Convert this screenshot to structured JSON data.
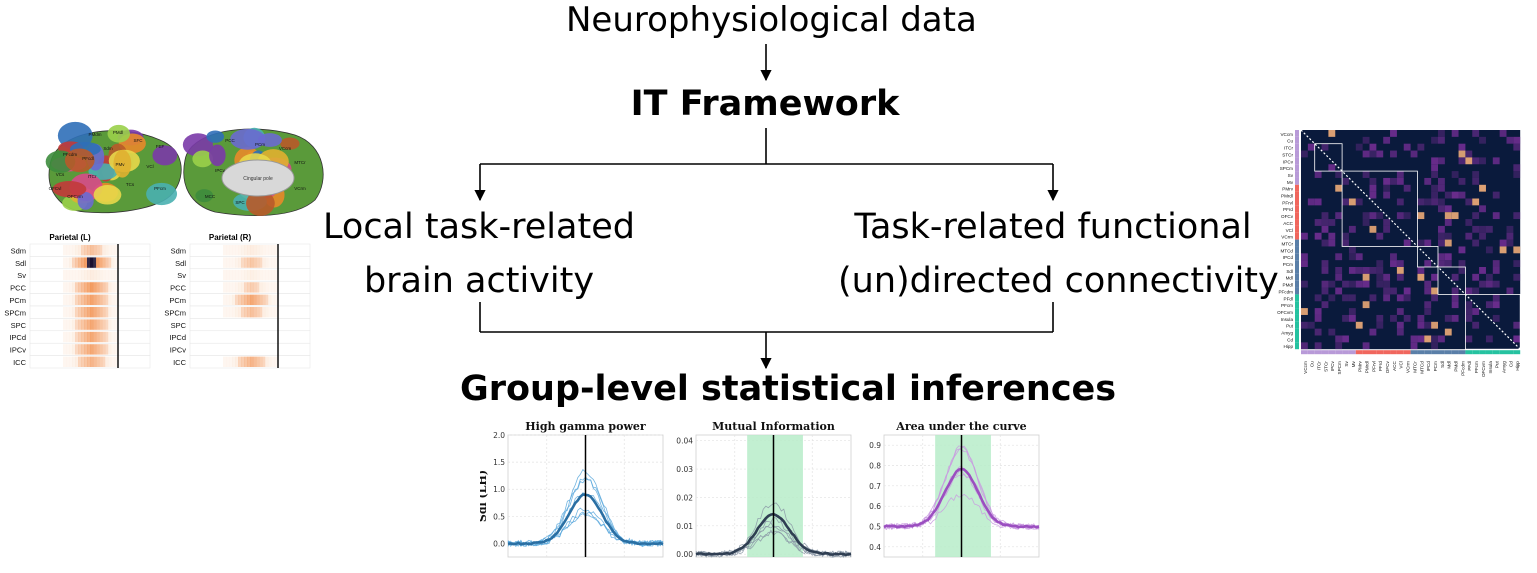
{
  "nodes": {
    "top": "Neurophysiological data",
    "framework": "IT Framework",
    "left_line1": "Local task-related",
    "left_line2": "brain activity",
    "right_line1": "Task-related functional",
    "right_line2": "(un)directed connectivity",
    "bottom": "Group-level statistical inferences"
  },
  "brain_panel": {
    "heatmap_left_title": "Parietal (L)",
    "heatmap_right_title": "Parietal (R)",
    "rows": [
      "Sdm",
      "Sdl",
      "Sv",
      "PCC",
      "PCm",
      "SPCm",
      "SPC",
      "IPCd",
      "IPCv",
      "ICC"
    ],
    "map_labels": [
      "PMdm",
      "PMdl",
      "SFC",
      "FEF",
      "Sdm",
      "PFcdm",
      "PFcdl",
      "PMv",
      "VCl",
      "VCs",
      "ITCr",
      "TCs",
      "PFcm",
      "OFCvl",
      "OFCvm",
      "Cingular pole",
      "MTCr",
      "VCcm",
      "PCm",
      "PCC",
      "VCrm",
      "MCC",
      "IPCv",
      "SPC"
    ],
    "colors": {
      "cold": "#ffffff",
      "mid": "#f0843c",
      "hot": "#1a1030"
    }
  },
  "matrix_panel": {
    "rows": [
      "VCcm",
      "Cu",
      "ITCr",
      "STCr",
      "IPCv",
      "SPCm",
      "Sv",
      "Mv",
      "PMrv",
      "PMrdl",
      "PFrvl",
      "PFrd",
      "OFCv",
      "ACC",
      "VCl",
      "VCrm",
      "MTCr",
      "MTCd",
      "IPCd",
      "PCm",
      "Sdl",
      "Mdl",
      "PMdl",
      "PFcdm",
      "PFdl",
      "PFcm",
      "OFCvm",
      "Insula",
      "Put",
      "Amyg",
      "Cd",
      "Hipp"
    ],
    "group_bar_colors": [
      "#b89ad8",
      "#f0665d",
      "#5a7fa8",
      "#25c2a0"
    ],
    "colormap": {
      "low": "#0a1a3c",
      "mid": "#7a2f9a",
      "high": "#f5b07a"
    }
  },
  "plots": [
    {
      "title": "High gamma power",
      "ylabel": "Sdl (LH)",
      "yticks": [
        "2.0",
        "1.5",
        "1.0",
        "0.5",
        "0.0"
      ],
      "ylim": [
        -0.25,
        2.0
      ],
      "color": "#2a6fa3",
      "light_color": "#5ba8dc",
      "peak": 0.9,
      "shade": false
    },
    {
      "title": "Mutual Information",
      "ylabel": "",
      "yticks": [
        "0.04",
        "0.03",
        "0.02",
        "0.01",
        "0.00"
      ],
      "ylim": [
        -0.001,
        0.042
      ],
      "color": "#2f3e52",
      "light_color": "#8a96a6",
      "peak": 0.014,
      "shade": true,
      "shade_color": "#b7ecc9"
    },
    {
      "title": "Area under the curve",
      "ylabel": "",
      "yticks": [
        "0.9",
        "0.8",
        "0.7",
        "0.6",
        "0.5",
        "0.4"
      ],
      "ylim": [
        0.35,
        0.95
      ],
      "color": "#9b4fc0",
      "light_color": "#c99ae0",
      "peak": 0.78,
      "shade": true,
      "shade_color": "#b7ecc9"
    }
  ]
}
